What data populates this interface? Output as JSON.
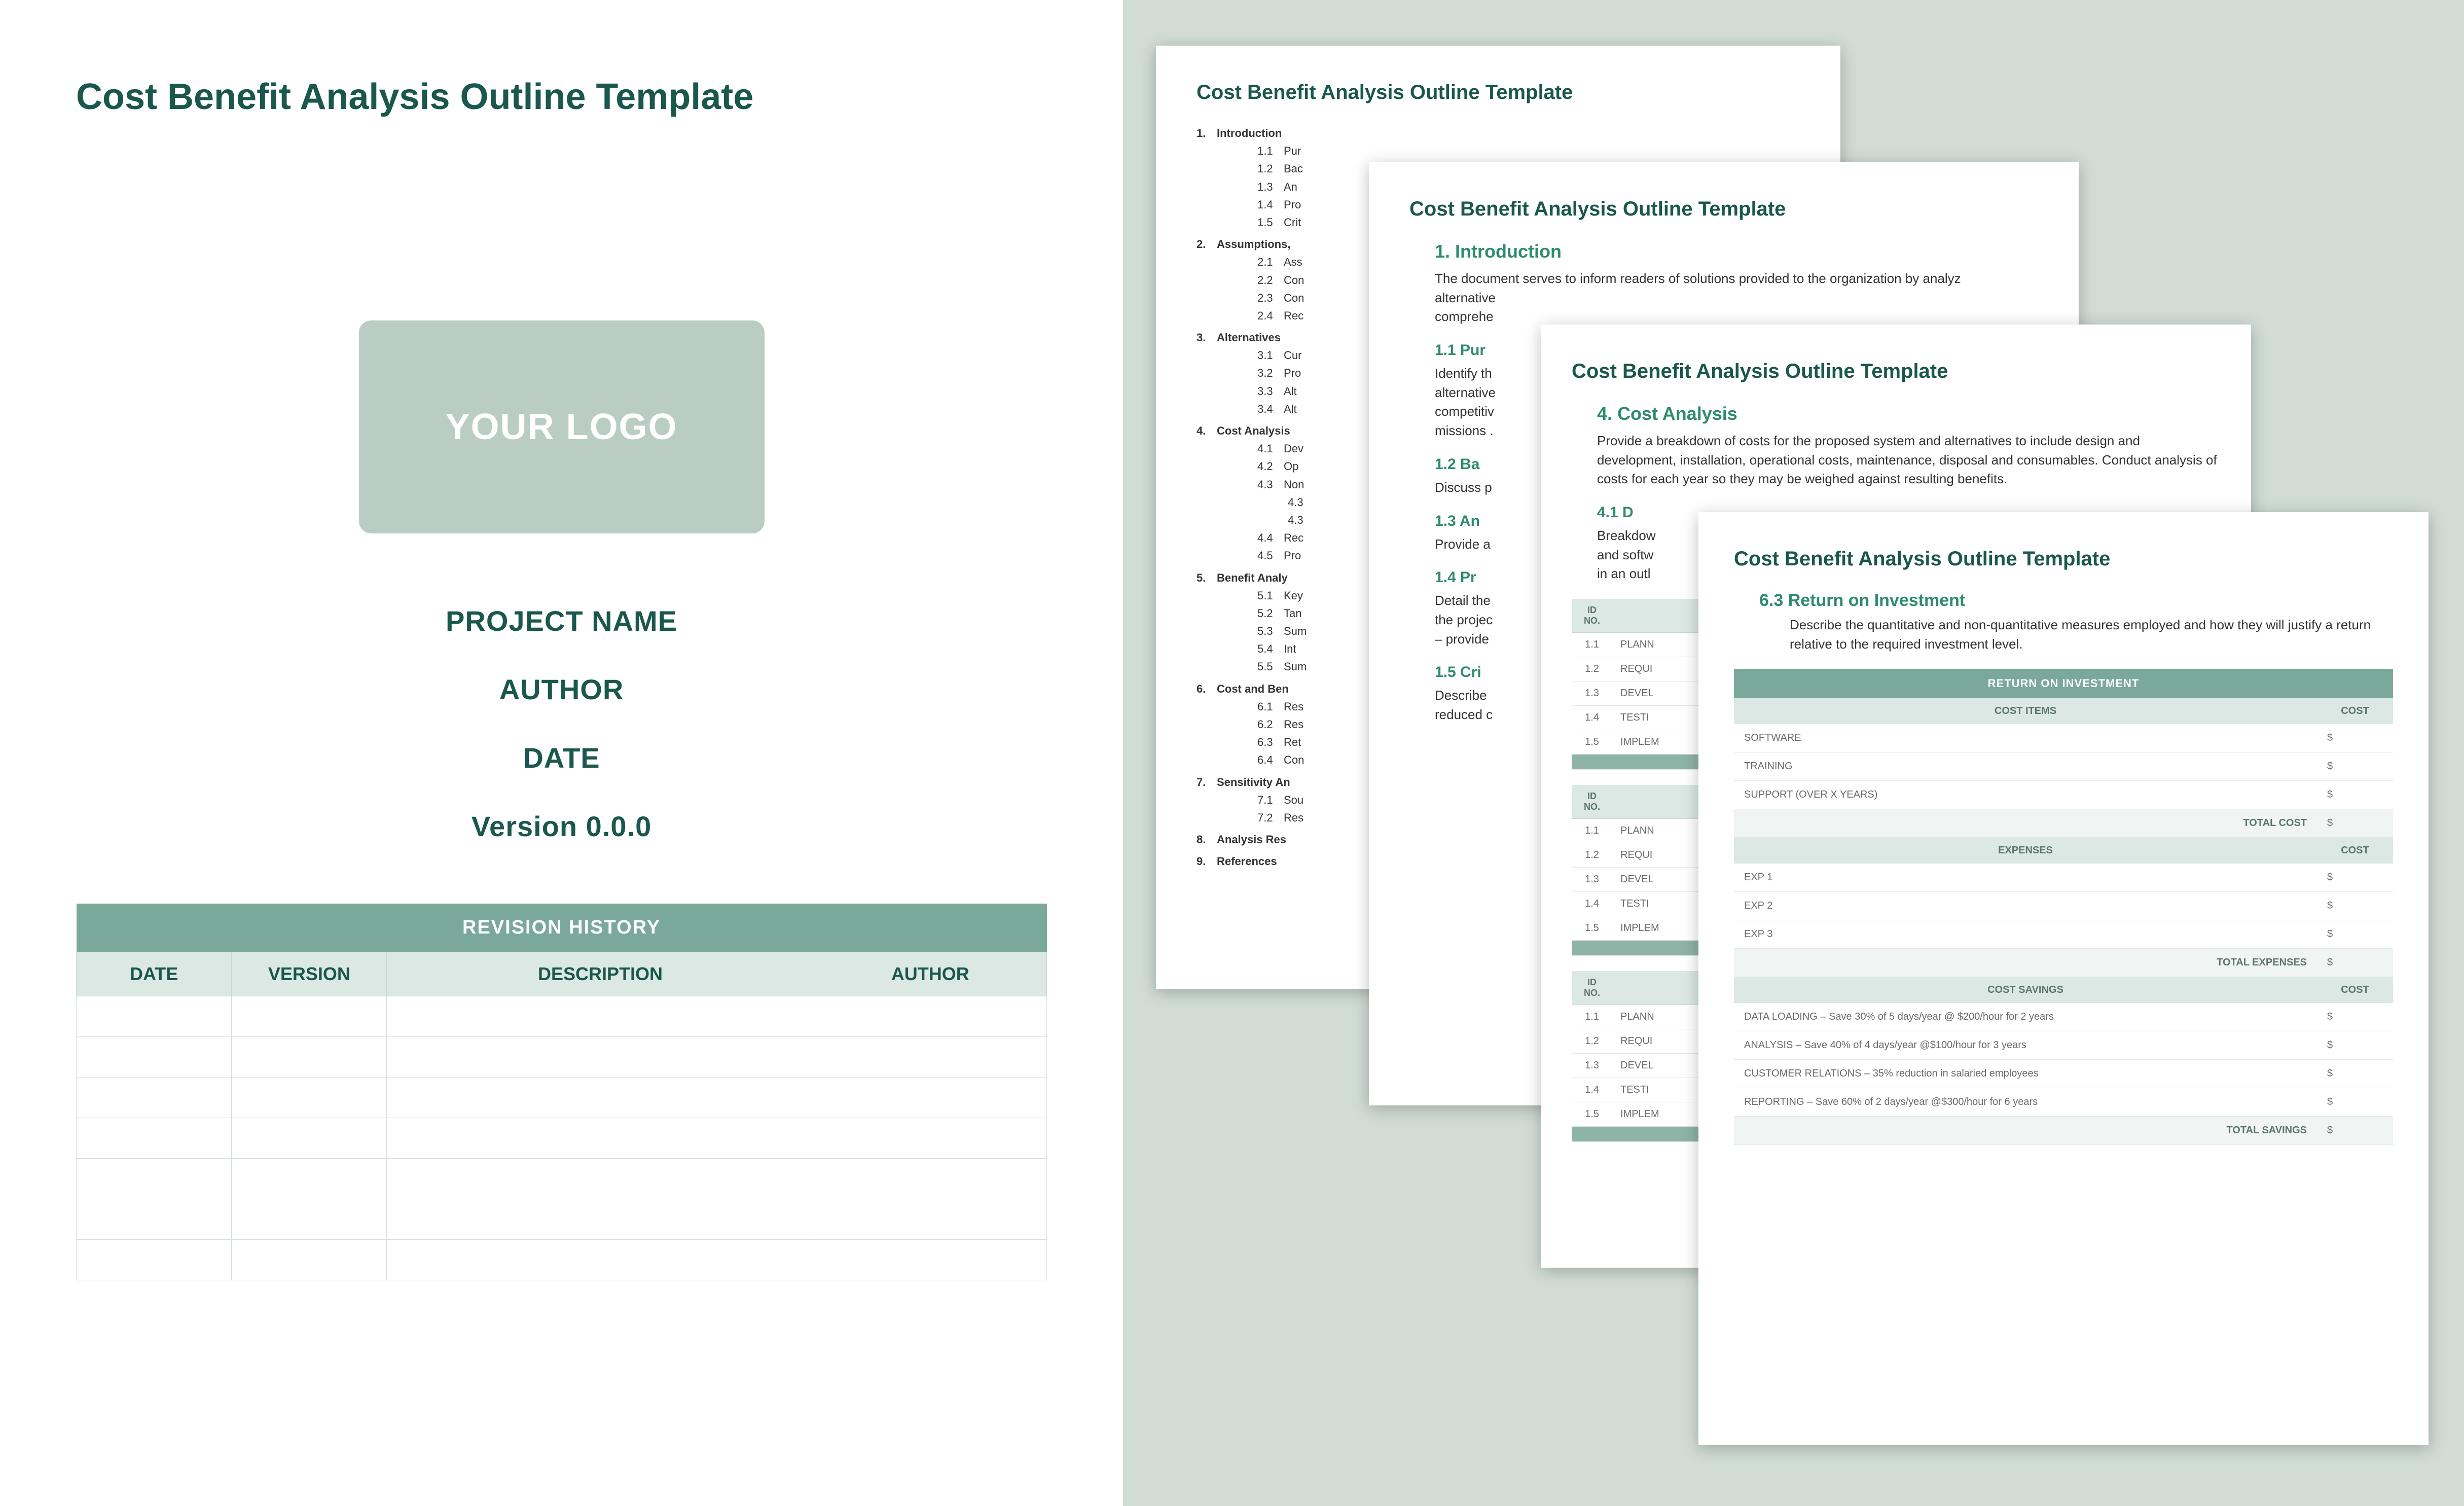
{
  "doc_title": "Cost Benefit Analysis Outline Template",
  "cover": {
    "logo_text": "YOUR LOGO",
    "project": "PROJECT NAME",
    "author": "AUTHOR",
    "date": "DATE",
    "version": "Version 0.0.0",
    "revision_title": "REVISION HISTORY",
    "cols": {
      "date": "DATE",
      "version": "VERSION",
      "description": "DESCRIPTION",
      "author": "AUTHOR"
    },
    "blank_rows": 7
  },
  "toc": [
    {
      "n": "1.",
      "t": "Introduction",
      "sub": [
        {
          "n": "1.1",
          "t": "Pur"
        },
        {
          "n": "1.2",
          "t": "Bac"
        },
        {
          "n": "1.3",
          "t": "An"
        },
        {
          "n": "1.4",
          "t": "Pro"
        },
        {
          "n": "1.5",
          "t": "Crit"
        }
      ]
    },
    {
      "n": "2.",
      "t": "Assumptions,",
      "sub": [
        {
          "n": "2.1",
          "t": "Ass"
        },
        {
          "n": "2.2",
          "t": "Con"
        },
        {
          "n": "2.3",
          "t": "Con"
        },
        {
          "n": "2.4",
          "t": "Rec"
        }
      ]
    },
    {
      "n": "3.",
      "t": "Alternatives",
      "sub": [
        {
          "n": "3.1",
          "t": "Cur"
        },
        {
          "n": "3.2",
          "t": "Pro"
        },
        {
          "n": "3.3",
          "t": "Alt"
        },
        {
          "n": "3.4",
          "t": "Alt"
        }
      ]
    },
    {
      "n": "4.",
      "t": "Cost Analysis",
      "sub": [
        {
          "n": "4.1",
          "t": "Dev"
        },
        {
          "n": "4.2",
          "t": "Op"
        },
        {
          "n": "4.3",
          "t": "Non",
          "sub": [
            {
              "n": "4.3",
              "t": ""
            },
            {
              "n": "4.3",
              "t": ""
            }
          ]
        },
        {
          "n": "4.4",
          "t": "Rec"
        },
        {
          "n": "4.5",
          "t": "Pro"
        }
      ]
    },
    {
      "n": "5.",
      "t": "Benefit Analy",
      "sub": [
        {
          "n": "5.1",
          "t": "Key"
        },
        {
          "n": "5.2",
          "t": "Tan"
        },
        {
          "n": "5.3",
          "t": "Sum"
        },
        {
          "n": "5.4",
          "t": "Int"
        },
        {
          "n": "5.5",
          "t": "Sum"
        }
      ]
    },
    {
      "n": "6.",
      "t": "Cost and Ben",
      "sub": [
        {
          "n": "6.1",
          "t": "Res"
        },
        {
          "n": "6.2",
          "t": "Res"
        },
        {
          "n": "6.3",
          "t": "Ret"
        },
        {
          "n": "6.4",
          "t": "Con"
        }
      ]
    },
    {
      "n": "7.",
      "t": "Sensitivity An",
      "sub": [
        {
          "n": "7.1",
          "t": "Sou"
        },
        {
          "n": "7.2",
          "t": "Res"
        }
      ]
    },
    {
      "n": "8.",
      "t": "Analysis Res"
    },
    {
      "n": "9.",
      "t": "References"
    }
  ],
  "intro": {
    "h1": "1. Introduction",
    "p1": "The document serves to inform readers of solutions provided to the organization by analyz",
    "p1b": "alternative",
    "p1c": "comprehe",
    "s11": "1.1  Pur",
    "t11a": "Identify th",
    "t11b": "alternative",
    "t11c": "competitiv",
    "t11d": "missions .",
    "s12": "1.2  Ba",
    "t12": "Discuss p",
    "s13": "1.3  An",
    "t13": "Provide a",
    "s14": "1.4  Pr",
    "t14a": "Detail the",
    "t14b": "the projec",
    "t14c": "– provide",
    "s15": "1.5  Cri",
    "t15a": "Describe",
    "t15b": "reduced c"
  },
  "cost": {
    "h": "4. Cost Analysis",
    "p": "Provide a breakdown of costs for the proposed system and alternatives to include design and development, installation, operational costs, maintenance, disposal and consumables. Conduct analysis of costs for each year so they may be weighed against resulting benefits.",
    "s41": "4.1  D",
    "t41a": "Breakdow",
    "t41b": "and softw",
    "t41c": "in an outl",
    "tbl_head_id": "ID NO.",
    "rows": [
      {
        "id": "1.1",
        "t": "PLANN"
      },
      {
        "id": "1.2",
        "t": "REQUI"
      },
      {
        "id": "1.3",
        "t": "DEVEL"
      },
      {
        "id": "1.4",
        "t": "TESTI"
      },
      {
        "id": "1.5",
        "t": "IMPLEM"
      }
    ]
  },
  "roi": {
    "h": "6.3  Return on Investment",
    "p": "Describe the quantitative and non-quantitative measures employed and how they will justify a return relative to the required investment level.",
    "banner": "RETURN ON INVESTMENT",
    "col_items": "COST ITEMS",
    "col_cost": "COST",
    "cost_items": [
      {
        "t": "SOFTWARE",
        "c": "$"
      },
      {
        "t": "TRAINING",
        "c": "$"
      },
      {
        "t": "SUPPORT (OVER X YEARS)",
        "c": "$"
      }
    ],
    "total_cost": "TOTAL COST",
    "expenses_h": "EXPENSES",
    "expenses": [
      {
        "t": "EXP 1",
        "c": "$"
      },
      {
        "t": "EXP 2",
        "c": "$"
      },
      {
        "t": "EXP 3",
        "c": "$"
      }
    ],
    "total_exp": "TOTAL EXPENSES",
    "savings_h": "COST SAVINGS",
    "savings": [
      {
        "t": "DATA LOADING – Save 30% of 5 days/year @ $200/hour for 2 years",
        "c": "$"
      },
      {
        "t": "ANALYSIS – Save 40% of 4 days/year @$100/hour for 3 years",
        "c": "$"
      },
      {
        "t": "CUSTOMER RELATIONS – 35% reduction in salaried employees",
        "c": "$"
      },
      {
        "t": "REPORTING – Save 60% of 2 days/year @$300/hour for 6 years",
        "c": "$"
      }
    ],
    "total_sav": "TOTAL SAVINGS",
    "dollar": "$"
  }
}
